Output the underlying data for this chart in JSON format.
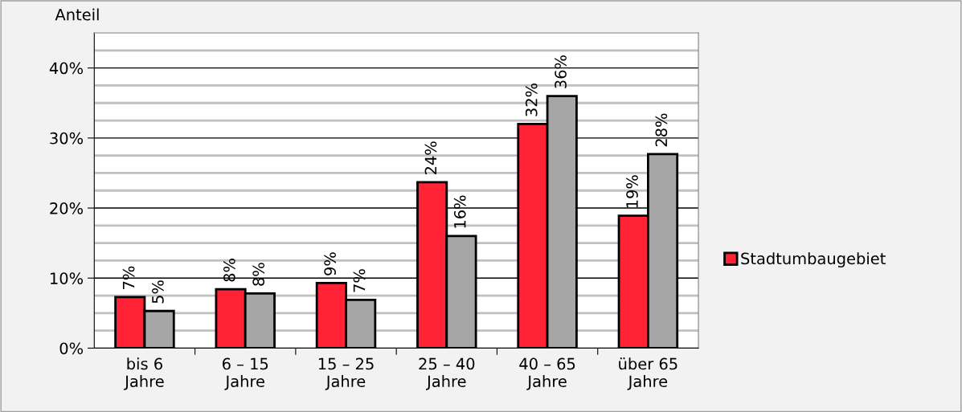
{
  "chart_data": {
    "type": "bar",
    "ylabel": "Anteil",
    "categories": [
      "bis 6\nJahre",
      "6 – 15\nJahre",
      "15 – 25\nJahre",
      "25 – 40\nJahre",
      "40 – 65\nJahre",
      "über 65\nJahre"
    ],
    "series": [
      {
        "name": "Stadtumbaugebiet",
        "color": "#ff2335",
        "values": [
          7.3,
          8.4,
          9.3,
          23.7,
          32.0,
          18.9
        ],
        "value_labels": [
          "7%",
          "8%",
          "9%",
          "24%",
          "32%",
          "19%"
        ]
      },
      {
        "color": "#a6a6a6",
        "values": [
          5.3,
          7.8,
          6.9,
          16.0,
          36.0,
          27.7
        ],
        "value_labels": [
          "5%",
          "8%",
          "7%",
          "16%",
          "36%",
          "28%"
        ]
      }
    ],
    "ylim": [
      0,
      45
    ],
    "yticks": [
      {
        "value": 0,
        "label": "0%"
      },
      {
        "value": 2.5,
        "label": null
      },
      {
        "value": 5,
        "label": null
      },
      {
        "value": 7.5,
        "label": null
      },
      {
        "value": 10,
        "label": "10%"
      },
      {
        "value": 12.5,
        "label": null
      },
      {
        "value": 15,
        "label": null
      },
      {
        "value": 17.5,
        "label": null
      },
      {
        "value": 20,
        "label": "20%"
      },
      {
        "value": 22.5,
        "label": null
      },
      {
        "value": 25,
        "label": null
      },
      {
        "value": 27.5,
        "label": null
      },
      {
        "value": 30,
        "label": "30%"
      },
      {
        "value": 32.5,
        "label": null
      },
      {
        "value": 35,
        "label": null
      },
      {
        "value": 37.5,
        "label": null
      },
      {
        "value": 40,
        "label": "40%"
      },
      {
        "value": 42.5,
        "label": null
      }
    ],
    "grid": "y",
    "legend": "right"
  }
}
